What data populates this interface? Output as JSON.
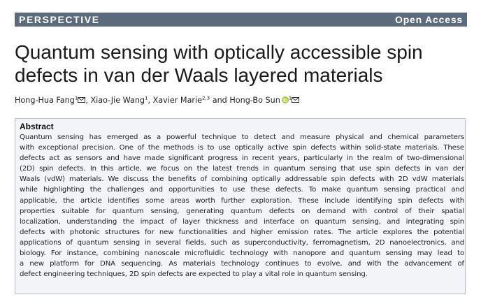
{
  "banner": {
    "section": "PERSPECTIVE",
    "access": "Open Access"
  },
  "title_lines": [
    "Quantum sensing with optically accessible spin",
    "defects in van der Waals layered materials"
  ],
  "authors": [
    {
      "name": "Hong-Hua Fang",
      "affil": "1",
      "corresponding": true
    },
    {
      "name": "Xiao-Jie Wang",
      "affil": "1"
    },
    {
      "name": "Xavier Marie",
      "affil": "2,3"
    },
    {
      "name": "Hong-Bo Sun",
      "affil": "1",
      "orcid": true,
      "corresponding": true
    }
  ],
  "abstract": {
    "heading": "Abstract",
    "lines": [
      "Quantum sensing has emerged as a powerful technique to detect and measure physical and chemical parameters",
      "with exceptional precision. One of the methods is to use optically active spin defects within solid-state materials. These",
      "defects act as sensors and have made significant progress in recent years, particularly in the realm of two-dimensional",
      "(2D) spin defects. In this article, we focus on the latest trends in quantum sensing that use spin defects in van der",
      "Waals (vdW) materials. We discuss the benefits of combining optically addressable spin defects with 2D vdW materials",
      "while highlighting the challenges and opportunities to use these defects. To make quantum sensing practical and",
      "applicable, the article identifies some areas worth further exploration. These include identifying spin defects with",
      "properties suitable for quantum sensing, generating quantum defects on demand with control of their spatial",
      "localization, understanding the impact of layer thickness and interface on quantum sensing, and integrating spin",
      "defects with photonic structures for new functionalities and higher emission rates. The article explores the potential",
      "applications of quantum sensing in several fields, such as superconductivity, ferromagnetism, 2D nanoelectronics, and",
      "biology. For instance, combining nanoscale microfluidic technology with nanopore and quantum sensing may lead to",
      "a new platform for DNA sequencing. As materials technology continues to evolve, and with the advancement of",
      "defect engineering techniques, 2D spin defects are expected to play a vital role in quantum sensing."
    ]
  },
  "icons": {
    "mail": "envelope-icon",
    "orcid": "orcid-icon"
  },
  "colors": {
    "banner_bg": "#5b6b7d",
    "abstract_bg": "#f3f4f7",
    "orcid_green": "#a6ce39"
  }
}
